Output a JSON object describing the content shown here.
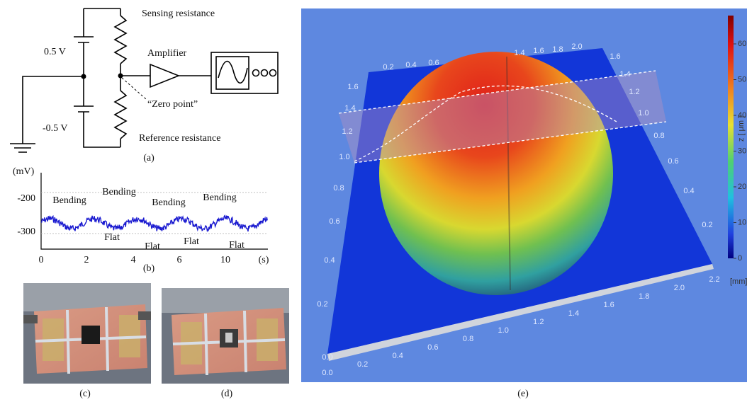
{
  "panel_a": {
    "sensing_resistance": "Sensing resistance",
    "amplifier": "Amplifier",
    "positive_voltage": "0.5 V",
    "zero_point": "“Zero point”",
    "negative_voltage": "-0.5 V",
    "reference_resistance": "Reference resistance",
    "caption": "(a)"
  },
  "panel_b": {
    "y_unit": "(mV)",
    "y_ticks": [
      "-200",
      "-300"
    ],
    "x_ticks": [
      "0",
      "2",
      "4",
      "6",
      "10"
    ],
    "x_unit": "(s)",
    "bending_labels": [
      "Bending",
      "Bending",
      "Bending",
      "Bending"
    ],
    "flat_labels": [
      "Flat",
      "Flat",
      "Flat",
      "Flat"
    ],
    "caption": "(b)"
  },
  "panel_c": {
    "caption": "(c)"
  },
  "panel_d": {
    "caption": "(d)"
  },
  "panel_e": {
    "colorbar_ticks": [
      "60",
      "50",
      "40",
      "30",
      "20",
      "10",
      "0"
    ],
    "colorbar_label": "z [ μm ]",
    "unit": "[mm]",
    "top_axis": [
      "0.2",
      "0.4",
      "0.6",
      "1.4",
      "1.6",
      "1.8",
      "2.0"
    ],
    "left_axis": [
      "1.6",
      "1.4",
      "1.2",
      "1.0",
      "0.8",
      "0.6",
      "0.4",
      "0.2",
      "0.0"
    ],
    "right_axis": [
      "1.6",
      "1.4",
      "1.2",
      "1.0",
      "0.8",
      "0.6",
      "0.4",
      "0.2"
    ],
    "bottom_axis": [
      "0.0",
      "0.2",
      "0.4",
      "0.6",
      "0.8",
      "1.0",
      "1.2",
      "1.4",
      "1.6",
      "1.8",
      "2.0",
      "2.2"
    ],
    "caption": "(e)"
  }
}
